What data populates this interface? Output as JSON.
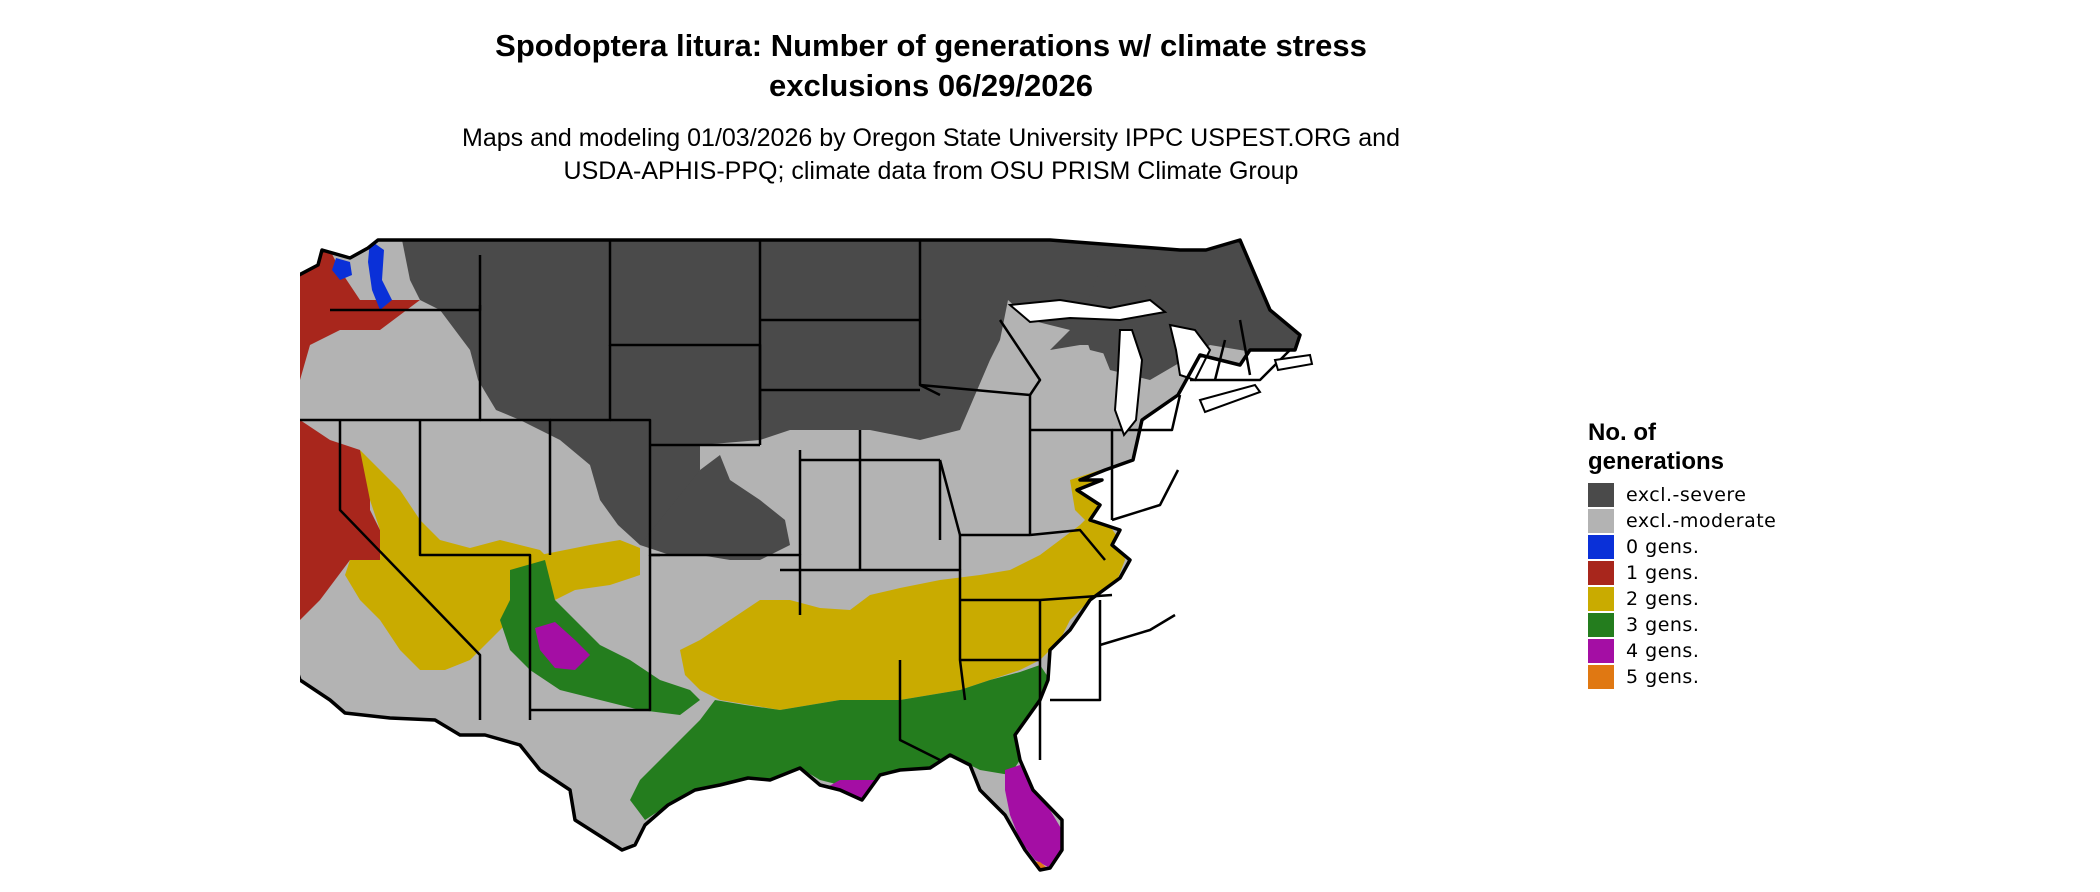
{
  "title": {
    "line1": "Spodoptera litura: Number of generations w/ climate stress",
    "line2": "exclusions 06/29/2026"
  },
  "subtitle": {
    "line1": "Maps and modeling 01/03/2026 by Oregon State University IPPC USPEST.ORG and",
    "line2": "USDA-APHIS-PPQ; climate data from OSU PRISM Climate Group"
  },
  "legend": {
    "title_line1": "No. of",
    "title_line2": "generations",
    "items": [
      {
        "label": "excl.-severe",
        "color": "#4a4a4a"
      },
      {
        "label": "excl.-moderate",
        "color": "#b3b3b3"
      },
      {
        "label": "0 gens.",
        "color": "#0a30d8"
      },
      {
        "label": "1 gens.",
        "color": "#a8261c"
      },
      {
        "label": "2 gens.",
        "color": "#c9ab00"
      },
      {
        "label": "3 gens.",
        "color": "#247d1e"
      },
      {
        "label": "4 gens.",
        "color": "#a40ea4"
      },
      {
        "label": "5 gens.",
        "color": "#e07812"
      }
    ]
  },
  "map": {
    "region": "Contiguous United States",
    "zones": [
      {
        "region": "northern-interior",
        "category": "excl.-severe",
        "color": "#4a4a4a"
      },
      {
        "region": "central-and-west-interior",
        "category": "excl.-moderate",
        "color": "#b3b3b3"
      },
      {
        "region": "pacific-northwest-peaks",
        "category": "0 gens.",
        "color": "#0a30d8"
      },
      {
        "region": "pacific-coast",
        "category": "1 gens.",
        "color": "#a8261c"
      },
      {
        "region": "southern-belt",
        "category": "2 gens.",
        "color": "#c9ab00"
      },
      {
        "region": "gulf-coast",
        "category": "3 gens.",
        "color": "#247d1e"
      },
      {
        "region": "south-texas-florida-southwest-desert",
        "category": "4 gens.",
        "color": "#a40ea4"
      },
      {
        "region": "florida-keys",
        "category": "5 gens.",
        "color": "#e07812"
      }
    ]
  }
}
